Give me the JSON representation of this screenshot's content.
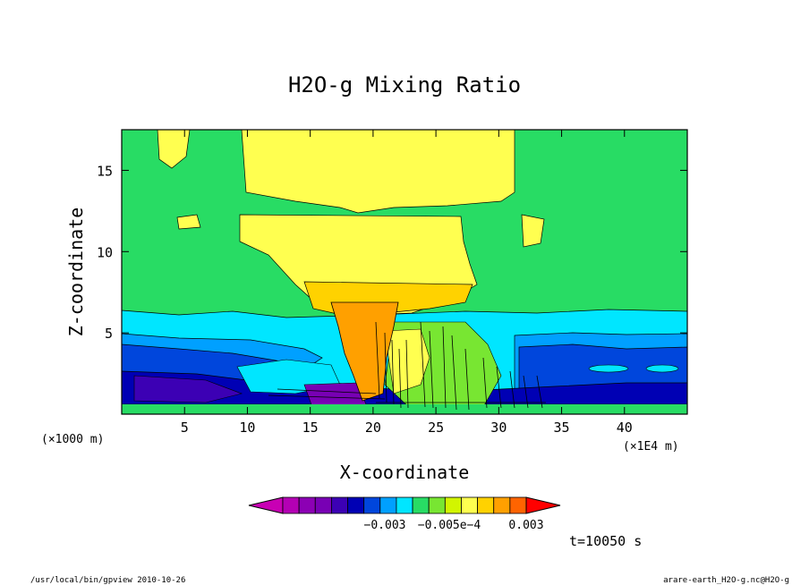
{
  "chart_data": {
    "type": "heatmap",
    "title": "H2O-g Mixing Ratio",
    "xlabel": "X-coordinate",
    "ylabel": "Z-coordinate",
    "x_unit_left": "(×1000 m)",
    "x_unit_right": "(×1E4 m)",
    "xlim": [
      0,
      45
    ],
    "ylim": [
      0,
      17.5
    ],
    "x_ticks": [
      5,
      10,
      15,
      20,
      25,
      30,
      35,
      40
    ],
    "y_ticks": [
      5,
      10,
      15
    ],
    "colorbar": {
      "colors": [
        "#c800b4",
        "#b400b4",
        "#8c00b4",
        "#7800b4",
        "#3c00b4",
        "#0000b4",
        "#0046dc",
        "#00a0ff",
        "#00e6ff",
        "#28dc64",
        "#78e632",
        "#d2f500",
        "#ffff50",
        "#ffd200",
        "#ffa000",
        "#ff6400",
        "#ff0000"
      ],
      "labels": [
        "−0.003",
        "−0.005e−4",
        "0.003"
      ]
    },
    "time_label": "t=10050 s",
    "grid": false
  },
  "footer": {
    "left": "/usr/local/bin/gpview  2010-10-26",
    "right": "arare-earth_H2O-g.nc@H2O-g"
  }
}
